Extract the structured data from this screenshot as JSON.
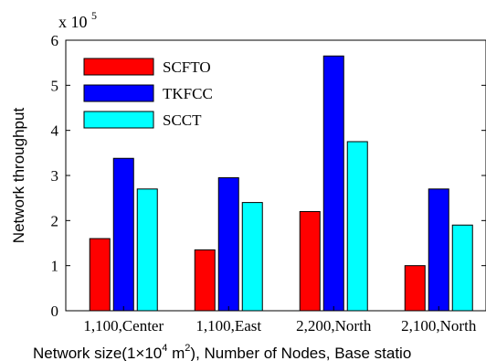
{
  "chart_data": {
    "type": "bar",
    "categories": [
      "1,100,Center",
      "1,100,East",
      "2,200,North",
      "2,100,North"
    ],
    "series": [
      {
        "name": "SCFTO",
        "color": "#ff0000",
        "values": [
          1.6,
          1.35,
          2.2,
          1.0
        ]
      },
      {
        "name": "TKFCC",
        "color": "#0000ff",
        "values": [
          3.38,
          2.95,
          5.65,
          2.7
        ]
      },
      {
        "name": "SCCT",
        "color": "#00ffff",
        "values": [
          2.7,
          2.4,
          3.75,
          1.9
        ]
      }
    ],
    "ylim": [
      0,
      6
    ],
    "yticks": [
      "0",
      "1",
      "2",
      "3",
      "4",
      "5",
      "6"
    ],
    "ylabel": "Network throughput",
    "multiplier_base": "x 10",
    "multiplier_exp": "5",
    "xlabel_parts": {
      "pre": "Network size(1×10",
      "sup": "4",
      "mid": " m",
      "sup2": "2",
      "post": "), Number of Nodes, Base statio"
    },
    "legend_position": "top-left",
    "grid": false
  }
}
